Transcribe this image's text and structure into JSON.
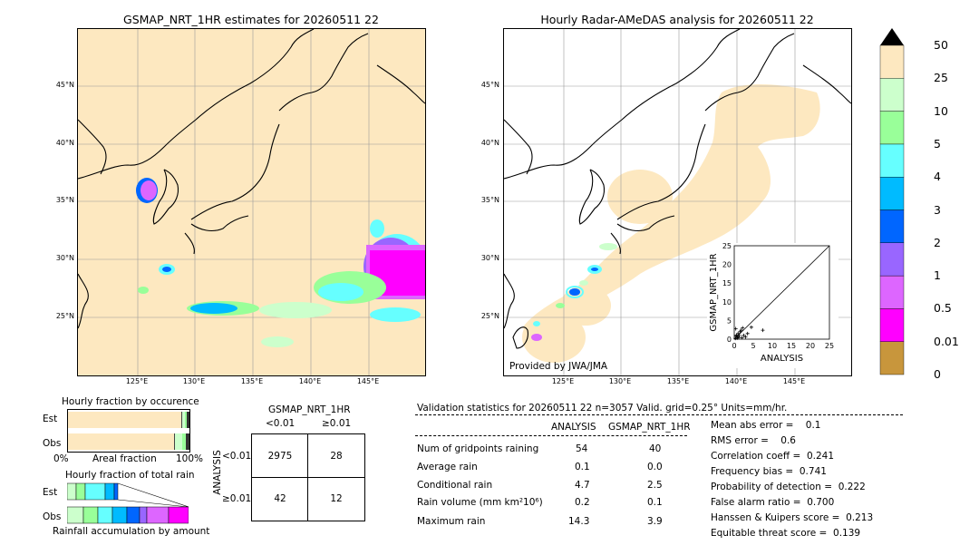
{
  "left_map": {
    "title": "GSMAP_NRT_1HR estimates for 20260511 22",
    "lat_labels": [
      "45°N",
      "40°N",
      "35°N",
      "30°N",
      "25°N"
    ],
    "lon_labels": [
      "125°E",
      "130°E",
      "135°E",
      "140°E",
      "145°E"
    ]
  },
  "right_map": {
    "title": "Hourly Radar-AMeDAS analysis for 20260511 22",
    "credit": "Provided by JWA/JMA",
    "lat_labels": [
      "45°N",
      "40°N",
      "35°N",
      "30°N",
      "25°N"
    ],
    "lon_labels": [
      "125°E",
      "130°E",
      "135°E",
      "140°E",
      "145°E"
    ]
  },
  "colorbar": {
    "labels": [
      "50",
      "25",
      "10",
      "5",
      "4",
      "3",
      "2",
      "1",
      "0.5",
      "0.01",
      "0"
    ],
    "colors": [
      "#c8963c",
      "#ff00ff",
      "#dd66ff",
      "#9966ff",
      "#0066ff",
      "#00bbff",
      "#66ffff",
      "#99ff99",
      "#ccffcc",
      "#fde8c0"
    ]
  },
  "scatter": {
    "xlabel": "ANALYSIS",
    "ylabel": "GSMAP_NRT_1HR",
    "ticks": [
      "0",
      "5",
      "10",
      "15",
      "20",
      "25"
    ]
  },
  "occurrence": {
    "title": "Hourly fraction by occurence",
    "rows": [
      "Est",
      "Obs"
    ],
    "xlabel_left": "0%",
    "xlabel_mid": "Areal fraction",
    "xlabel_right": "100%"
  },
  "amount": {
    "title": "Hourly fraction of total rain",
    "rows": [
      "Est",
      "Obs"
    ],
    "footer": "Rainfall accumulation by amount"
  },
  "contingency": {
    "header": "GSMAP_NRT_1HR",
    "col_lt": "<0.01",
    "col_ge": "≥0.01",
    "side": "ANALYSIS",
    "row_lt": "<0.01",
    "row_ge": "≥0.01",
    "cells": [
      "2975",
      "28",
      "42",
      "12"
    ]
  },
  "validation": {
    "header": "Validation statistics for 20260511 22  n=3057 Valid. grid=0.25° Units=mm/hr.",
    "col_analysis": "ANALYSIS",
    "col_gsmap": "GSMAP_NRT_1HR",
    "rows": [
      {
        "label": "Num of gridpoints raining",
        "a": "54",
        "g": "40"
      },
      {
        "label": "Average rain",
        "a": "0.1",
        "g": "0.0"
      },
      {
        "label": "Conditional rain",
        "a": "4.7",
        "g": "2.5"
      },
      {
        "label": "Rain volume (mm km²10⁶)",
        "a": "0.2",
        "g": "0.1"
      },
      {
        "label": "Maximum rain",
        "a": "14.3",
        "g": "3.9"
      }
    ],
    "scores": [
      "Mean abs error =    0.1",
      "RMS error =    0.6",
      "Correlation coeff =  0.241",
      "Frequency bias =  0.741",
      "Probability of detection =  0.222",
      "False alarm ratio =  0.700",
      "Hanssen & Kuipers score =  0.213",
      "Equitable threat score =  0.139"
    ]
  },
  "chart_data": [
    {
      "type": "scatter",
      "xlabel": "ANALYSIS",
      "ylabel": "GSMAP_NRT_1HR",
      "xlim": [
        0,
        25
      ],
      "ylim": [
        0,
        25
      ],
      "points": [
        [
          0.3,
          0.2
        ],
        [
          0.5,
          0.8
        ],
        [
          0.8,
          0.3
        ],
        [
          1.0,
          1.5
        ],
        [
          1.2,
          0.5
        ],
        [
          1.5,
          2.0
        ],
        [
          0.6,
          1.1
        ],
        [
          2.0,
          0.4
        ],
        [
          2.5,
          1.0
        ],
        [
          1.8,
          2.4
        ],
        [
          3.0,
          0.6
        ],
        [
          0.4,
          2.8
        ],
        [
          2.2,
          3.0
        ],
        [
          4.5,
          3.2
        ],
        [
          7.5,
          2.4
        ],
        [
          1.3,
          1.0
        ],
        [
          0.9,
          0.6
        ],
        [
          3.5,
          1.5
        ]
      ]
    },
    {
      "type": "table",
      "title": "Hourly fraction by occurence",
      "rows": [
        "Est",
        "Obs"
      ],
      "segments": {
        "Est": [
          0.935,
          0.02,
          0.015,
          0.01
        ],
        "Obs": [
          0.9,
          0.05,
          0.03,
          0.02
        ]
      }
    }
  ]
}
